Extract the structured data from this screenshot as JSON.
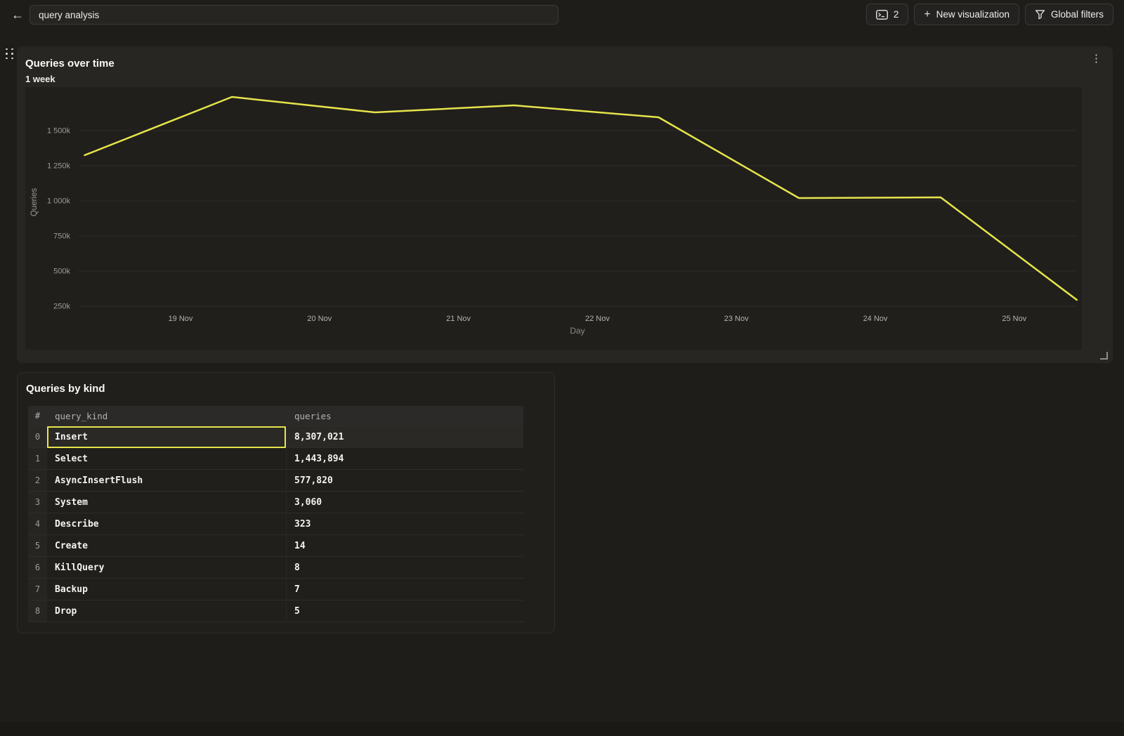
{
  "topbar": {
    "back_label": "←",
    "title_input": {
      "value": "query analysis"
    },
    "tab_count_button": {
      "count": "2"
    },
    "new_visualization_button": {
      "plus": "+",
      "label": "New visualization"
    },
    "global_filters_button": {
      "label": "Global filters"
    }
  },
  "chart_panel": {
    "title": "Queries over time",
    "subtitle": "1 week",
    "menu_icon": "⋮"
  },
  "chart_data": {
    "type": "line",
    "title": "Queries over time",
    "subtitle": "1 week",
    "xlabel": "Day",
    "ylabel": "Queries",
    "x_tick_labels": [
      "19 Nov",
      "20 Nov",
      "21 Nov",
      "22 Nov",
      "23 Nov",
      "24 Nov",
      "25 Nov"
    ],
    "y_ticks": [
      {
        "label": "1 500k",
        "value_k": 1500
      },
      {
        "label": "1 250k",
        "value_k": 1250
      },
      {
        "label": "1 000k",
        "value_k": 1000
      },
      {
        "label": "750k",
        "value_k": 750
      },
      {
        "label": "500k",
        "value_k": 500
      },
      {
        "label": "250k",
        "value_k": 250
      }
    ],
    "ylim_k": [
      130,
      1810
    ],
    "grid": "horizontal",
    "legend": "none",
    "series": [
      {
        "name": "Queries",
        "color": "#e6e44b",
        "points": [
          {
            "day": -0.69,
            "value_k": 1325
          },
          {
            "day": 0.37,
            "value_k": 1740
          },
          {
            "day": 1.4,
            "value_k": 1630
          },
          {
            "day": 2.4,
            "value_k": 1680
          },
          {
            "day": 3.44,
            "value_k": 1595
          },
          {
            "day": 4.45,
            "value_k": 1020
          },
          {
            "day": 5.47,
            "value_k": 1025
          },
          {
            "day": 6.45,
            "value_k": 295
          }
        ]
      }
    ]
  },
  "table_panel": {
    "title": "Queries by kind",
    "table": {
      "columns": [
        "#",
        "query_kind",
        "queries"
      ],
      "rows": [
        {
          "index": "0",
          "query_kind": "Insert",
          "queries": "8,307,021",
          "selected": true
        },
        {
          "index": "1",
          "query_kind": "Select",
          "queries": "1,443,894"
        },
        {
          "index": "2",
          "query_kind": "AsyncInsertFlush",
          "queries": "577,820"
        },
        {
          "index": "3",
          "query_kind": "System",
          "queries": "3,060"
        },
        {
          "index": "4",
          "query_kind": "Describe",
          "queries": "323"
        },
        {
          "index": "5",
          "query_kind": "Create",
          "queries": "14"
        },
        {
          "index": "6",
          "query_kind": "KillQuery",
          "queries": "8"
        },
        {
          "index": "7",
          "query_kind": "Backup",
          "queries": "7"
        },
        {
          "index": "8",
          "query_kind": "Drop",
          "queries": "5"
        }
      ]
    }
  },
  "colors": {
    "accent_yellow": "#e6e44b",
    "selection_border": "#e6e44b",
    "page_bg": "#1e1d1a",
    "chart_panel_bg": "#272623",
    "plot_bg": "#201f1c",
    "table_panel_bg": "#201f1c",
    "grid_line": "#2e2d2a",
    "tick_text": "#9c9b97",
    "x_tick_text": "#b3b2ae"
  }
}
